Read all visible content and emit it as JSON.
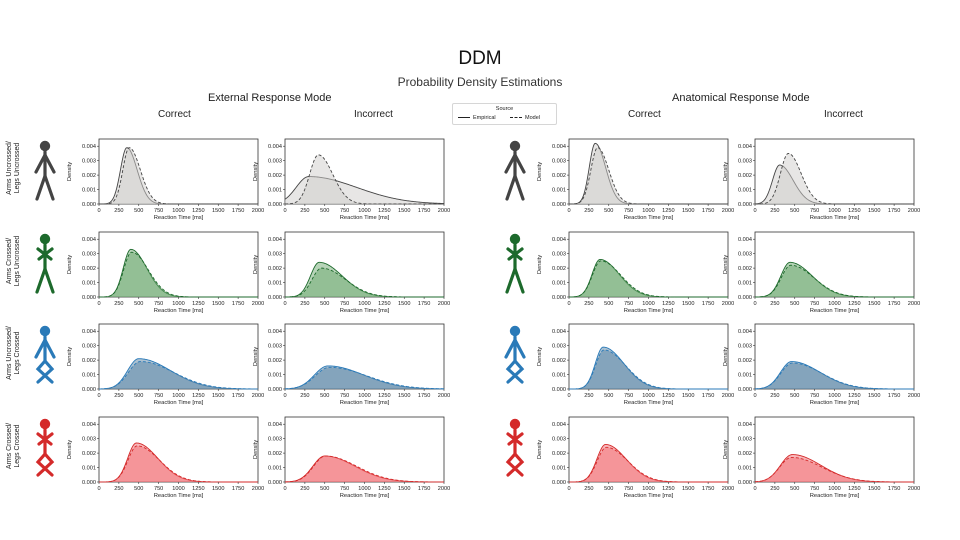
{
  "header": {
    "title": "DDM",
    "subtitle": "Probability Density Estimations",
    "mode_left": "External Response Mode",
    "mode_right": "Anatomical Response Mode",
    "col_correct": "Correct",
    "col_incorrect": "Incorrect"
  },
  "legend": {
    "title": "Source",
    "empirical": "Empirical",
    "model": "Model"
  },
  "rows": [
    {
      "label_line1": "Arms Uncrossed/",
      "label_line2": "Legs Uncrossed",
      "color": "#444444",
      "fill": "#cfcecb",
      "figure_icon": "stick-figure-uncrossed-icon"
    },
    {
      "label_line1": "Arms Crossed/",
      "label_line2": "Legs Uncrossed",
      "color": "#1d6a2c",
      "fill": "#6faa72",
      "figure_icon": "stick-figure-arms-crossed-icon"
    },
    {
      "label_line1": "Arms Uncrossed/",
      "label_line2": "Legs Crossed",
      "color": "#2a7ab8",
      "fill": "#5b86a6",
      "figure_icon": "stick-figure-legs-crossed-icon"
    },
    {
      "label_line1": "Arms Crossed/",
      "label_line2": "Legs Crossed",
      "color": "#d42a2a",
      "fill": "#f27178",
      "figure_icon": "stick-figure-both-crossed-icon"
    }
  ],
  "chart_data": {
    "type": "area",
    "xlabel": "Reaction Time [ms]",
    "ylabel": "Density",
    "xlim": [
      0,
      2000
    ],
    "ylim": [
      0,
      0.0045
    ],
    "xticks": [
      "0",
      "250",
      "500",
      "750",
      "1000",
      "1250",
      "1500",
      "1750",
      "2000"
    ],
    "yticks": [
      "0.000",
      "0.001",
      "0.002",
      "0.003",
      "0.004"
    ],
    "panels": [
      {
        "row": 0,
        "mode": "External Response Mode",
        "outcome": "Correct",
        "empirical": {
          "peak_x": 350,
          "peak_y": 0.0039,
          "rise": 80,
          "tail": 130
        },
        "model": {
          "peak_x": 380,
          "peak_y": 0.0039,
          "rise": 80,
          "tail": 140
        }
      },
      {
        "row": 0,
        "mode": "External Response Mode",
        "outcome": "Incorrect",
        "empirical": {
          "peak_x": 300,
          "peak_y": 0.0019,
          "rise": 160,
          "tail": 600
        },
        "model": {
          "peak_x": 420,
          "peak_y": 0.0034,
          "rise": 110,
          "tail": 180
        }
      },
      {
        "row": 0,
        "mode": "Anatomical Response Mode",
        "outcome": "Correct",
        "empirical": {
          "peak_x": 330,
          "peak_y": 0.0042,
          "rise": 75,
          "tail": 130
        },
        "model": {
          "peak_x": 360,
          "peak_y": 0.0039,
          "rise": 85,
          "tail": 140
        }
      },
      {
        "row": 0,
        "mode": "Anatomical Response Mode",
        "outcome": "Incorrect",
        "empirical": {
          "peak_x": 310,
          "peak_y": 0.0027,
          "rise": 90,
          "tail": 170
        },
        "model": {
          "peak_x": 420,
          "peak_y": 0.0035,
          "rise": 100,
          "tail": 160
        }
      },
      {
        "row": 1,
        "mode": "External Response Mode",
        "outcome": "Correct",
        "empirical": {
          "peak_x": 400,
          "peak_y": 0.0033,
          "rise": 95,
          "tail": 200
        },
        "model": {
          "peak_x": 410,
          "peak_y": 0.0031,
          "rise": 100,
          "tail": 210
        }
      },
      {
        "row": 1,
        "mode": "External Response Mode",
        "outcome": "Incorrect",
        "empirical": {
          "peak_x": 430,
          "peak_y": 0.0024,
          "rise": 110,
          "tail": 290
        },
        "model": {
          "peak_x": 460,
          "peak_y": 0.002,
          "rise": 120,
          "tail": 300
        }
      },
      {
        "row": 1,
        "mode": "Anatomical Response Mode",
        "outcome": "Correct",
        "empirical": {
          "peak_x": 390,
          "peak_y": 0.0026,
          "rise": 100,
          "tail": 240
        },
        "model": {
          "peak_x": 400,
          "peak_y": 0.0025,
          "rise": 105,
          "tail": 250
        }
      },
      {
        "row": 1,
        "mode": "Anatomical Response Mode",
        "outcome": "Incorrect",
        "empirical": {
          "peak_x": 440,
          "peak_y": 0.0024,
          "rise": 115,
          "tail": 280
        },
        "model": {
          "peak_x": 450,
          "peak_y": 0.0022,
          "rise": 120,
          "tail": 290
        }
      },
      {
        "row": 2,
        "mode": "External Response Mode",
        "outcome": "Correct",
        "empirical": {
          "peak_x": 500,
          "peak_y": 0.0021,
          "rise": 140,
          "tail": 400
        },
        "model": {
          "peak_x": 520,
          "peak_y": 0.0019,
          "rise": 150,
          "tail": 420
        }
      },
      {
        "row": 2,
        "mode": "External Response Mode",
        "outcome": "Incorrect",
        "empirical": {
          "peak_x": 540,
          "peak_y": 0.0016,
          "rise": 170,
          "tail": 450
        },
        "model": {
          "peak_x": 560,
          "peak_y": 0.0015,
          "rise": 180,
          "tail": 470
        }
      },
      {
        "row": 2,
        "mode": "Anatomical Response Mode",
        "outcome": "Correct",
        "empirical": {
          "peak_x": 430,
          "peak_y": 0.0029,
          "rise": 100,
          "tail": 260
        },
        "model": {
          "peak_x": 440,
          "peak_y": 0.0027,
          "rise": 105,
          "tail": 270
        }
      },
      {
        "row": 2,
        "mode": "Anatomical Response Mode",
        "outcome": "Incorrect",
        "empirical": {
          "peak_x": 460,
          "peak_y": 0.0019,
          "rise": 140,
          "tail": 360
        },
        "model": {
          "peak_x": 470,
          "peak_y": 0.0018,
          "rise": 145,
          "tail": 370
        }
      },
      {
        "row": 3,
        "mode": "External Response Mode",
        "outcome": "Correct",
        "empirical": {
          "peak_x": 470,
          "peak_y": 0.0027,
          "rise": 110,
          "tail": 270
        },
        "model": {
          "peak_x": 480,
          "peak_y": 0.0025,
          "rise": 115,
          "tail": 280
        }
      },
      {
        "row": 3,
        "mode": "External Response Mode",
        "outcome": "Incorrect",
        "empirical": {
          "peak_x": 500,
          "peak_y": 0.0018,
          "rise": 150,
          "tail": 380
        },
        "model": {
          "peak_x": 510,
          "peak_y": 0.0018,
          "rise": 150,
          "tail": 390
        }
      },
      {
        "row": 3,
        "mode": "Anatomical Response Mode",
        "outcome": "Correct",
        "empirical": {
          "peak_x": 460,
          "peak_y": 0.0026,
          "rise": 110,
          "tail": 260
        },
        "model": {
          "peak_x": 470,
          "peak_y": 0.0024,
          "rise": 115,
          "tail": 270
        }
      },
      {
        "row": 3,
        "mode": "Anatomical Response Mode",
        "outcome": "Incorrect",
        "empirical": {
          "peak_x": 470,
          "peak_y": 0.0019,
          "rise": 150,
          "tail": 360
        },
        "model": {
          "peak_x": 460,
          "peak_y": 0.0017,
          "rise": 150,
          "tail": 380
        }
      }
    ]
  }
}
